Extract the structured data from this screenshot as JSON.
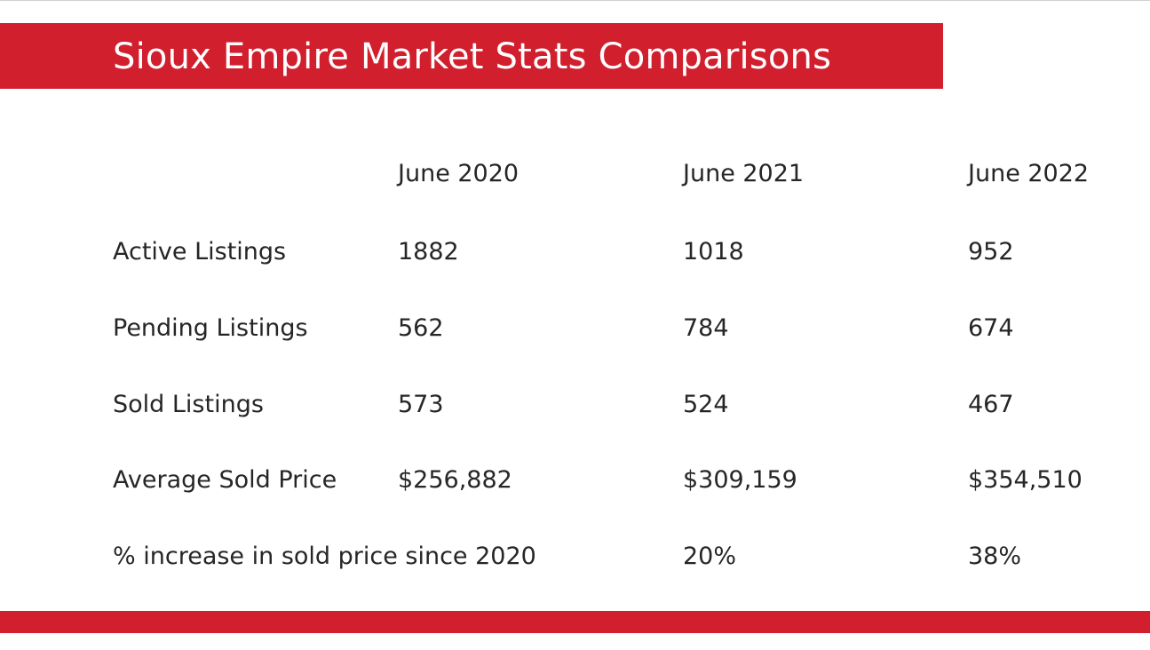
{
  "slide": {
    "title": "Sioux Empire Market Stats Comparisons",
    "accent_color": "#d11f2e"
  },
  "table": {
    "columns": [
      "June 2020",
      "June 2021",
      "June 2022"
    ],
    "rows": [
      {
        "label": "Active Listings",
        "values": [
          "1882",
          "1018",
          "952"
        ]
      },
      {
        "label": "Pending Listings",
        "values": [
          "562",
          "784",
          "674"
        ]
      },
      {
        "label": "Sold Listings",
        "values": [
          "573",
          "524",
          "467"
        ]
      },
      {
        "label": "Average Sold Price",
        "values": [
          "$256,882",
          "$309,159",
          "$354,510"
        ]
      },
      {
        "label": "% increase in sold price since 2020",
        "values": [
          "",
          "20%",
          "38%"
        ]
      }
    ]
  }
}
